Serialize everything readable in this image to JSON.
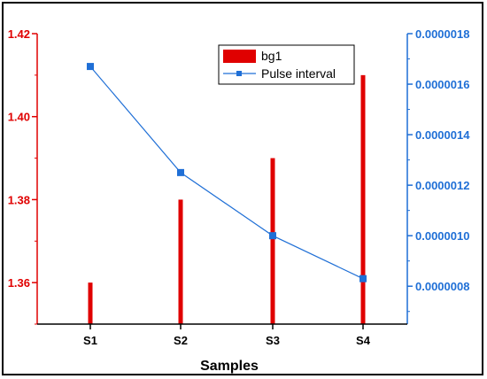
{
  "chart_data": {
    "type": "bar",
    "categories": [
      "S1",
      "S2",
      "S3",
      "S4"
    ],
    "xlabel": "Samples",
    "y_left": {
      "label": "",
      "range": [
        1.35,
        1.42
      ],
      "ticks": [
        1.36,
        1.38,
        1.4,
        1.42
      ],
      "tick_labels": [
        "1.36",
        "1.38",
        "1.40",
        "1.42"
      ],
      "color": "#e00000"
    },
    "y_right": {
      "label": "",
      "range": [
        6.5e-07,
        1.8e-06
      ],
      "ticks": [
        8e-07,
        1e-06,
        1.2e-06,
        1.4e-06,
        1.6e-06,
        1.8e-06
      ],
      "tick_labels": [
        "0.0000008",
        "0.0000010",
        "0.0000012",
        "0.0000014",
        "0.0000016",
        "0.0000018"
      ],
      "color": "#1f6fd6"
    },
    "series": [
      {
        "name": "bg1",
        "type": "bar",
        "axis": "left",
        "color": "#e00000",
        "values": [
          1.36,
          1.38,
          1.39,
          1.41
        ]
      },
      {
        "name": "Pulse interval",
        "type": "line",
        "axis": "right",
        "color": "#1f6fd6",
        "marker": "square",
        "values": [
          1.67e-06,
          1.25e-06,
          1e-06,
          8.3e-07
        ]
      }
    ],
    "legend": {
      "placement": "top-center",
      "entries": [
        "bg1",
        "Pulse interval"
      ]
    },
    "grid": false
  }
}
